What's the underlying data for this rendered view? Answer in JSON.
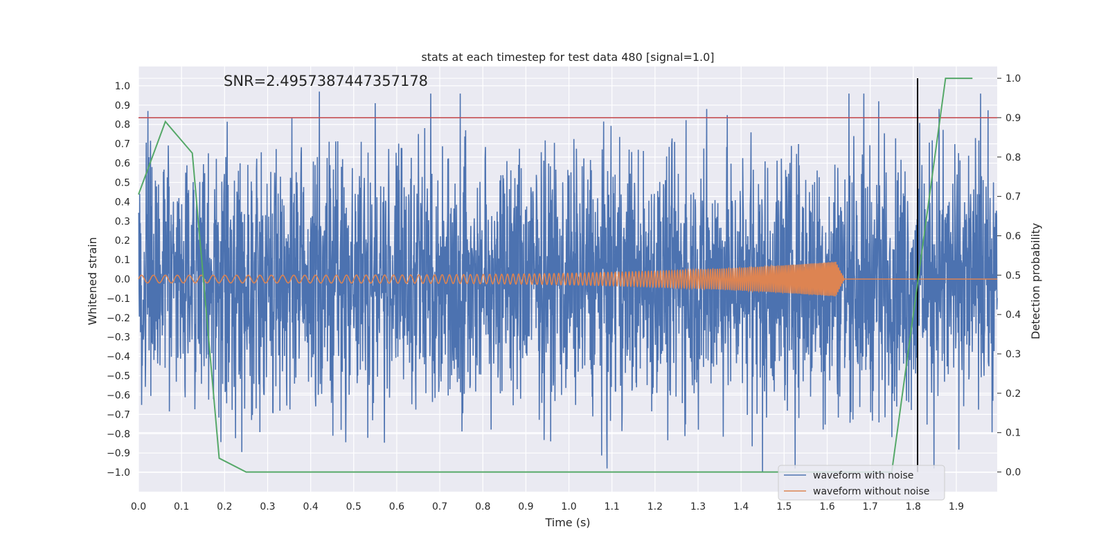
{
  "chart_data": {
    "type": "line",
    "title": "stats at each timestep for test data 480 [signal=1.0]",
    "annotation": "SNR=2.4957387447357178",
    "xlabel": "Time (s)",
    "ylabel_left": "Whitened strain",
    "ylabel_right": "Detection probability",
    "xlim": [
      0.0,
      1.995
    ],
    "ylim_left": [
      -1.1,
      1.1
    ],
    "ylim_right": [
      -0.05,
      1.03
    ],
    "x_ticks": [
      "0.0",
      "0.1",
      "0.2",
      "0.3",
      "0.4",
      "0.5",
      "0.6",
      "0.7",
      "0.8",
      "0.9",
      "1.0",
      "1.1",
      "1.2",
      "1.3",
      "1.4",
      "1.5",
      "1.6",
      "1.7",
      "1.8",
      "1.9"
    ],
    "y_left_ticks": [
      "1.0",
      "0.9",
      "0.8",
      "0.7",
      "0.6",
      "0.5",
      "0.4",
      "0.3",
      "0.2",
      "0.1",
      "0.0",
      "−0.1",
      "−0.2",
      "−0.3",
      "−0.4",
      "−0.5",
      "−0.6",
      "−0.7",
      "−0.8",
      "−0.9",
      "−1.0"
    ],
    "y_right_ticks": [
      "1.0",
      "0.9",
      "0.8",
      "0.7",
      "0.6",
      "0.5",
      "0.4",
      "0.3",
      "0.2",
      "0.1",
      "0.0"
    ],
    "threshold": 0.9,
    "detection_time": 1.81,
    "series": [
      {
        "name": "waveform with noise",
        "color": "#4c72b0",
        "axis": "left",
        "noise_amplitude": 0.32,
        "peaks": [
          [
            0.022,
            0.87
          ],
          [
            0.42,
            0.97
          ],
          [
            1.45,
            -1.0
          ],
          [
            1.72,
            0.92
          ],
          [
            1.86,
            0.88
          ],
          [
            1.32,
            0.88
          ],
          [
            0.55,
            0.91
          ],
          [
            0.76,
            0.77
          ]
        ]
      },
      {
        "name": "waveform without noise",
        "color": "#dd8452",
        "axis": "left",
        "chirp_start": 0.0,
        "chirp_end": 1.62,
        "start_amplitude": 0.02,
        "end_amplitude": 0.09,
        "start_frequency_hz": 36,
        "end_frequency_hz": 300
      },
      {
        "name": "detection probability",
        "color": "#55a868",
        "axis": "right",
        "x": [
          0.0,
          0.0625,
          0.125,
          0.1875,
          0.25,
          0.3125,
          1.6875,
          1.75,
          1.8125,
          1.875,
          1.9375
        ],
        "values": [
          0.705,
          0.89,
          0.81,
          0.035,
          0.0,
          0.0,
          0.0,
          0.0,
          0.5,
          1.0,
          1.0
        ]
      }
    ],
    "threshold_color": "#c44e52",
    "detection_line_color": "#000000",
    "legend_location": "lower-right"
  }
}
